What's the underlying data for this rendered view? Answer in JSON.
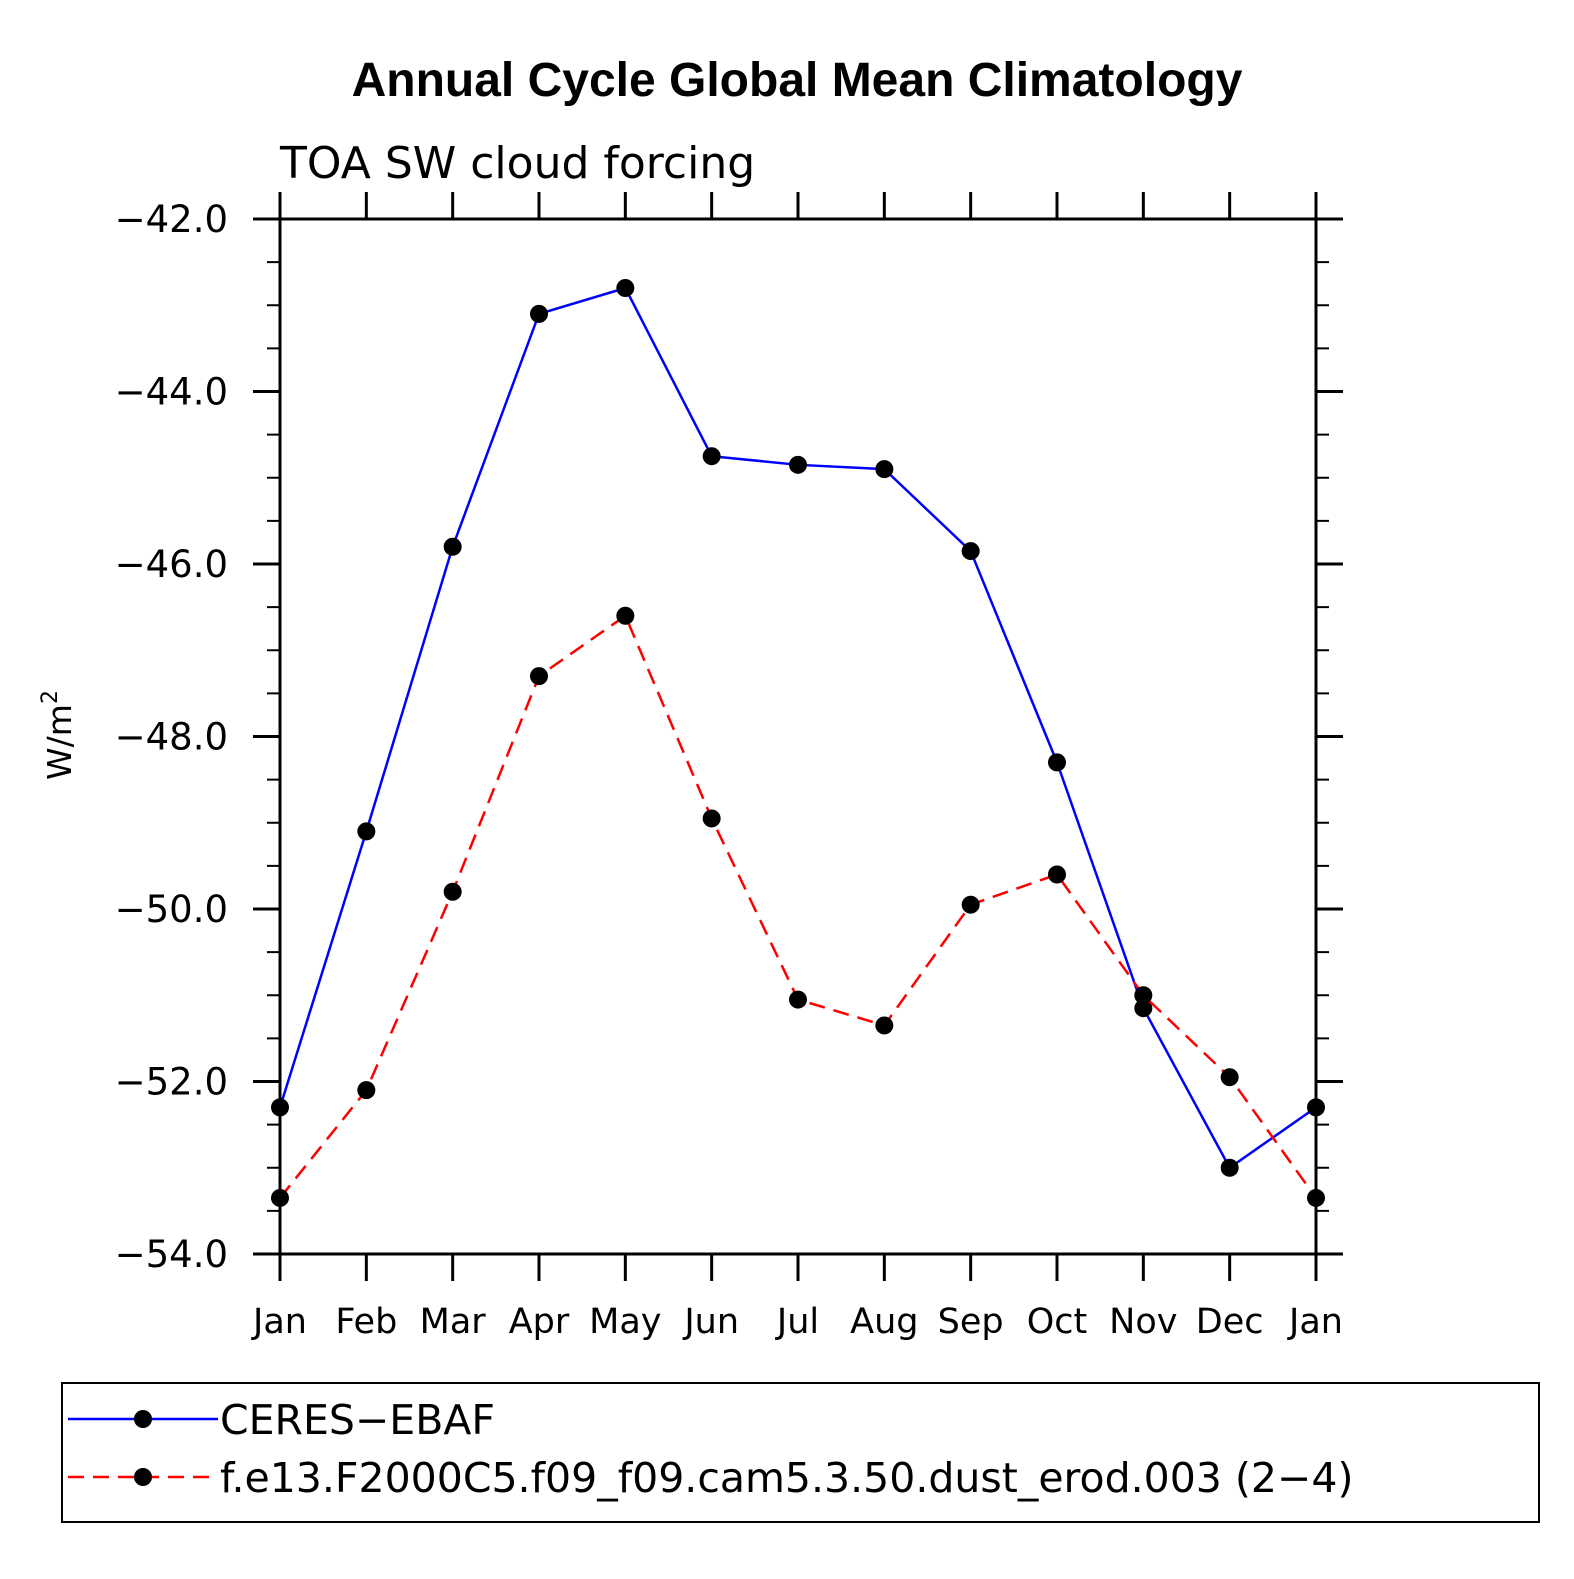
{
  "chart_data": {
    "type": "line",
    "title": "Annual Cycle Global Mean Climatology",
    "subtitle": "TOA SW cloud forcing",
    "ylabel": "W/m",
    "ylabel_sup": "2",
    "xlabel": "",
    "ylim": [
      -54.0,
      -42.0
    ],
    "yticks": [
      -42.0,
      -44.0,
      -46.0,
      -48.0,
      -50.0,
      -52.0,
      -54.0
    ],
    "ytick_labels": [
      "−42.0",
      "−44.0",
      "−46.0",
      "−48.0",
      "−50.0",
      "−52.0",
      "−54.0"
    ],
    "categories": [
      "Jan",
      "Feb",
      "Mar",
      "Apr",
      "May",
      "Jun",
      "Jul",
      "Aug",
      "Sep",
      "Oct",
      "Nov",
      "Dec",
      "Jan"
    ],
    "series": [
      {
        "name": "CERES−EBAF",
        "color": "#0000ff",
        "dash": "solid",
        "values": [
          -52.3,
          -49.1,
          -45.8,
          -43.1,
          -42.8,
          -44.75,
          -44.85,
          -44.9,
          -45.85,
          -48.3,
          -51.15,
          -53.0,
          -52.3
        ]
      },
      {
        "name": "f.e13.F2000C5.f09_f09.cam5.3.50.dust_erod.003 (2−4)",
        "color": "#ff0000",
        "dash": "dashed",
        "values": [
          -53.35,
          -52.1,
          -49.8,
          -47.3,
          -46.6,
          -48.95,
          -51.05,
          -51.35,
          -49.95,
          -49.6,
          -51.0,
          -51.95,
          -53.35
        ]
      }
    ],
    "legend_position": "bottom",
    "grid": false
  }
}
